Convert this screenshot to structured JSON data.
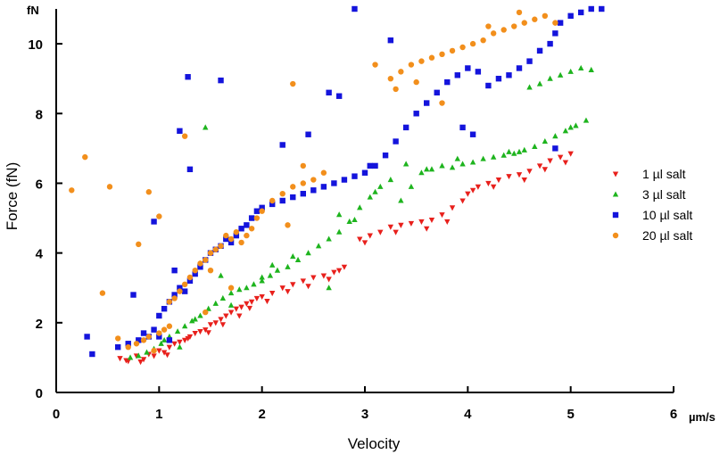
{
  "chart_data": {
    "type": "scatter",
    "title": "",
    "xlabel": "Velocity",
    "ylabel": "Force (fN)",
    "x_unit": "µm/s",
    "y_unit": "fN",
    "xlim": [
      0,
      6
    ],
    "ylim": [
      0,
      11
    ],
    "x_ticks": [
      "0",
      "1",
      "2",
      "3",
      "4",
      "5",
      "6"
    ],
    "y_ticks": [
      "0",
      "2",
      "4",
      "6",
      "8",
      "10"
    ],
    "grid": false,
    "legend_position": "right",
    "series": [
      {
        "name": "1 µl salt",
        "marker": "triangle-down",
        "color": "#e8201c",
        "points": [
          [
            0.62,
            0.98
          ],
          [
            0.7,
            0.9
          ],
          [
            0.78,
            1.05
          ],
          [
            0.85,
            0.95
          ],
          [
            0.9,
            1.1
          ],
          [
            0.95,
            1.05
          ],
          [
            1.0,
            1.2
          ],
          [
            1.05,
            1.15
          ],
          [
            1.1,
            1.3
          ],
          [
            1.15,
            1.4
          ],
          [
            1.2,
            1.45
          ],
          [
            1.25,
            1.5
          ],
          [
            1.3,
            1.6
          ],
          [
            1.35,
            1.7
          ],
          [
            1.4,
            1.75
          ],
          [
            1.45,
            1.8
          ],
          [
            1.5,
            1.95
          ],
          [
            1.55,
            2.0
          ],
          [
            1.6,
            2.1
          ],
          [
            1.65,
            2.2
          ],
          [
            1.7,
            2.3
          ],
          [
            1.75,
            2.4
          ],
          [
            1.8,
            2.45
          ],
          [
            1.85,
            2.55
          ],
          [
            1.9,
            2.6
          ],
          [
            1.95,
            2.7
          ],
          [
            2.0,
            2.75
          ],
          [
            2.1,
            2.85
          ],
          [
            2.2,
            3.0
          ],
          [
            2.3,
            3.1
          ],
          [
            2.4,
            3.2
          ],
          [
            2.5,
            3.3
          ],
          [
            2.6,
            3.35
          ],
          [
            2.7,
            3.45
          ],
          [
            2.75,
            3.5
          ],
          [
            2.8,
            3.6
          ],
          [
            2.95,
            4.4
          ],
          [
            3.05,
            4.5
          ],
          [
            3.15,
            4.6
          ],
          [
            3.25,
            4.75
          ],
          [
            3.35,
            4.8
          ],
          [
            3.45,
            4.85
          ],
          [
            3.55,
            4.9
          ],
          [
            3.65,
            4.95
          ],
          [
            3.75,
            5.1
          ],
          [
            3.85,
            5.3
          ],
          [
            3.95,
            5.5
          ],
          [
            4.0,
            5.7
          ],
          [
            4.1,
            5.9
          ],
          [
            4.2,
            6.0
          ],
          [
            4.3,
            6.1
          ],
          [
            4.4,
            6.2
          ],
          [
            4.5,
            6.25
          ],
          [
            4.6,
            6.35
          ],
          [
            4.7,
            6.5
          ],
          [
            4.8,
            6.65
          ],
          [
            4.9,
            6.75
          ],
          [
            5.0,
            6.85
          ],
          [
            0.68,
            0.92
          ],
          [
            0.82,
            0.88
          ],
          [
            1.08,
            1.08
          ],
          [
            1.28,
            1.55
          ],
          [
            1.48,
            1.72
          ],
          [
            1.62,
            1.95
          ],
          [
            1.78,
            2.2
          ],
          [
            1.88,
            2.42
          ],
          [
            2.05,
            2.62
          ],
          [
            2.25,
            2.9
          ],
          [
            2.45,
            3.05
          ],
          [
            2.65,
            3.25
          ],
          [
            3.0,
            4.3
          ],
          [
            3.3,
            4.6
          ],
          [
            3.6,
            4.7
          ],
          [
            3.8,
            4.9
          ],
          [
            4.05,
            5.8
          ],
          [
            4.25,
            5.9
          ],
          [
            4.55,
            6.1
          ],
          [
            4.75,
            6.4
          ],
          [
            4.95,
            6.6
          ]
        ]
      },
      {
        "name": "3 µl salt",
        "marker": "triangle-up",
        "color": "#1eb41e",
        "points": [
          [
            0.72,
            1.0
          ],
          [
            0.8,
            1.05
          ],
          [
            0.88,
            1.15
          ],
          [
            0.95,
            1.25
          ],
          [
            1.02,
            1.4
          ],
          [
            1.1,
            1.6
          ],
          [
            1.18,
            1.75
          ],
          [
            1.25,
            1.9
          ],
          [
            1.32,
            2.05
          ],
          [
            1.4,
            2.2
          ],
          [
            1.48,
            2.4
          ],
          [
            1.55,
            2.55
          ],
          [
            1.62,
            2.7
          ],
          [
            1.7,
            2.85
          ],
          [
            1.78,
            2.95
          ],
          [
            1.85,
            3.0
          ],
          [
            1.92,
            3.1
          ],
          [
            2.0,
            3.2
          ],
          [
            2.08,
            3.35
          ],
          [
            2.15,
            3.5
          ],
          [
            2.25,
            3.6
          ],
          [
            2.35,
            3.8
          ],
          [
            2.45,
            4.0
          ],
          [
            2.55,
            4.2
          ],
          [
            2.65,
            4.4
          ],
          [
            2.75,
            4.6
          ],
          [
            2.85,
            4.9
          ],
          [
            2.95,
            5.3
          ],
          [
            3.05,
            5.6
          ],
          [
            3.15,
            5.9
          ],
          [
            3.25,
            6.1
          ],
          [
            3.35,
            5.5
          ],
          [
            3.45,
            5.9
          ],
          [
            3.55,
            6.3
          ],
          [
            3.65,
            6.4
          ],
          [
            3.75,
            6.5
          ],
          [
            3.85,
            6.45
          ],
          [
            3.95,
            6.55
          ],
          [
            4.05,
            6.6
          ],
          [
            4.15,
            6.7
          ],
          [
            4.25,
            6.75
          ],
          [
            4.35,
            6.8
          ],
          [
            4.45,
            6.85
          ],
          [
            4.55,
            6.95
          ],
          [
            4.65,
            7.05
          ],
          [
            4.75,
            7.2
          ],
          [
            4.85,
            7.35
          ],
          [
            4.95,
            7.5
          ],
          [
            5.05,
            7.65
          ],
          [
            5.15,
            7.8
          ],
          [
            4.6,
            8.75
          ],
          [
            4.7,
            8.85
          ],
          [
            4.8,
            9.0
          ],
          [
            4.9,
            9.1
          ],
          [
            5.0,
            9.2
          ],
          [
            5.1,
            9.3
          ],
          [
            5.2,
            9.25
          ],
          [
            1.45,
            7.6
          ],
          [
            1.6,
            3.35
          ],
          [
            2.0,
            3.3
          ],
          [
            2.1,
            3.65
          ],
          [
            2.65,
            3.0
          ],
          [
            2.9,
            4.95
          ],
          [
            3.4,
            6.55
          ],
          [
            3.6,
            6.4
          ],
          [
            4.5,
            6.9
          ],
          [
            1.2,
            1.3
          ],
          [
            1.7,
            2.5
          ],
          [
            2.3,
            3.9
          ],
          [
            2.75,
            5.1
          ],
          [
            3.1,
            5.75
          ],
          [
            3.9,
            6.7
          ],
          [
            4.4,
            6.9
          ],
          [
            5.0,
            7.6
          ],
          [
            1.05,
            1.5
          ],
          [
            1.35,
            2.1
          ]
        ]
      },
      {
        "name": "10 µl salt",
        "marker": "square",
        "color": "#1414dc",
        "points": [
          [
            0.3,
            1.6
          ],
          [
            0.35,
            1.1
          ],
          [
            0.6,
            1.3
          ],
          [
            0.7,
            1.4
          ],
          [
            0.8,
            1.5
          ],
          [
            0.9,
            1.6
          ],
          [
            0.95,
            1.8
          ],
          [
            1.0,
            2.2
          ],
          [
            1.05,
            2.4
          ],
          [
            1.1,
            2.6
          ],
          [
            1.15,
            2.8
          ],
          [
            1.2,
            3.0
          ],
          [
            1.25,
            2.9
          ],
          [
            1.3,
            3.2
          ],
          [
            1.35,
            3.4
          ],
          [
            1.4,
            3.6
          ],
          [
            1.45,
            3.8
          ],
          [
            1.5,
            4.0
          ],
          [
            1.55,
            4.1
          ],
          [
            1.6,
            4.2
          ],
          [
            1.65,
            4.4
          ],
          [
            1.7,
            4.3
          ],
          [
            1.75,
            4.5
          ],
          [
            1.8,
            4.7
          ],
          [
            1.85,
            4.8
          ],
          [
            1.9,
            5.0
          ],
          [
            1.95,
            5.2
          ],
          [
            2.0,
            5.3
          ],
          [
            2.1,
            5.4
          ],
          [
            2.2,
            5.5
          ],
          [
            2.3,
            5.6
          ],
          [
            2.4,
            5.7
          ],
          [
            2.5,
            5.8
          ],
          [
            2.6,
            5.9
          ],
          [
            2.7,
            6.0
          ],
          [
            2.8,
            6.1
          ],
          [
            2.9,
            6.2
          ],
          [
            3.0,
            6.3
          ],
          [
            3.1,
            6.5
          ],
          [
            3.2,
            6.8
          ],
          [
            3.3,
            7.2
          ],
          [
            3.4,
            7.6
          ],
          [
            3.5,
            8.0
          ],
          [
            3.6,
            8.3
          ],
          [
            3.7,
            8.6
          ],
          [
            3.8,
            8.9
          ],
          [
            3.9,
            9.1
          ],
          [
            4.0,
            9.3
          ],
          [
            4.1,
            9.2
          ],
          [
            4.2,
            8.8
          ],
          [
            4.3,
            9.0
          ],
          [
            4.4,
            9.1
          ],
          [
            4.5,
            9.3
          ],
          [
            4.6,
            9.5
          ],
          [
            4.7,
            9.8
          ],
          [
            4.8,
            10.0
          ],
          [
            4.85,
            10.3
          ],
          [
            4.9,
            10.6
          ],
          [
            5.0,
            10.8
          ],
          [
            5.1,
            10.9
          ],
          [
            5.2,
            11.0
          ],
          [
            5.3,
            11.0
          ],
          [
            1.28,
            9.05
          ],
          [
            1.6,
            8.95
          ],
          [
            2.9,
            11.0
          ],
          [
            1.2,
            7.5
          ],
          [
            1.3,
            6.4
          ],
          [
            2.65,
            8.6
          ],
          [
            2.75,
            8.5
          ],
          [
            1.1,
            1.5
          ],
          [
            1.0,
            1.6
          ],
          [
            0.85,
            1.7
          ],
          [
            1.15,
            3.5
          ],
          [
            0.95,
            4.9
          ],
          [
            0.75,
            2.8
          ],
          [
            3.25,
            10.1
          ],
          [
            3.95,
            7.6
          ],
          [
            4.05,
            7.4
          ],
          [
            4.85,
            7.0
          ],
          [
            3.05,
            6.5
          ],
          [
            2.45,
            7.4
          ],
          [
            2.2,
            7.1
          ]
        ]
      },
      {
        "name": "20 µl salt",
        "marker": "circle",
        "color": "#f28f1c",
        "points": [
          [
            0.15,
            5.8
          ],
          [
            0.28,
            6.75
          ],
          [
            0.52,
            5.9
          ],
          [
            0.45,
            2.85
          ],
          [
            0.6,
            1.55
          ],
          [
            0.7,
            1.3
          ],
          [
            0.78,
            1.4
          ],
          [
            0.85,
            1.5
          ],
          [
            0.9,
            1.6
          ],
          [
            1.0,
            1.7
          ],
          [
            1.05,
            1.8
          ],
          [
            1.1,
            2.6
          ],
          [
            1.15,
            2.7
          ],
          [
            1.2,
            2.9
          ],
          [
            1.25,
            3.1
          ],
          [
            1.3,
            3.3
          ],
          [
            1.35,
            3.5
          ],
          [
            1.4,
            3.7
          ],
          [
            1.45,
            3.8
          ],
          [
            1.5,
            4.0
          ],
          [
            1.55,
            4.1
          ],
          [
            1.6,
            4.2
          ],
          [
            1.65,
            4.5
          ],
          [
            1.7,
            4.4
          ],
          [
            1.75,
            4.6
          ],
          [
            1.8,
            4.3
          ],
          [
            1.85,
            4.5
          ],
          [
            1.9,
            4.7
          ],
          [
            1.95,
            5.0
          ],
          [
            2.0,
            5.2
          ],
          [
            2.1,
            5.5
          ],
          [
            2.2,
            5.7
          ],
          [
            2.3,
            5.9
          ],
          [
            2.4,
            6.0
          ],
          [
            2.5,
            6.1
          ],
          [
            2.6,
            6.3
          ],
          [
            3.25,
            9.0
          ],
          [
            3.35,
            9.2
          ],
          [
            3.45,
            9.4
          ],
          [
            3.55,
            9.5
          ],
          [
            3.65,
            9.6
          ],
          [
            3.75,
            9.7
          ],
          [
            3.85,
            9.8
          ],
          [
            3.95,
            9.9
          ],
          [
            4.05,
            10.0
          ],
          [
            4.15,
            10.1
          ],
          [
            4.25,
            10.3
          ],
          [
            4.35,
            10.4
          ],
          [
            4.45,
            10.5
          ],
          [
            4.55,
            10.6
          ],
          [
            4.65,
            10.7
          ],
          [
            4.75,
            10.8
          ],
          [
            4.85,
            10.6
          ],
          [
            1.25,
            7.35
          ],
          [
            2.3,
            8.85
          ],
          [
            0.9,
            5.75
          ],
          [
            1.0,
            5.05
          ],
          [
            0.8,
            4.25
          ],
          [
            2.4,
            6.5
          ],
          [
            3.3,
            8.7
          ],
          [
            3.5,
            8.9
          ],
          [
            3.75,
            8.3
          ],
          [
            1.1,
            1.9
          ],
          [
            0.95,
            1.2
          ],
          [
            1.45,
            2.3
          ],
          [
            1.7,
            3.0
          ],
          [
            2.25,
            4.8
          ],
          [
            3.1,
            9.4
          ],
          [
            4.2,
            10.5
          ],
          [
            4.5,
            10.9
          ],
          [
            1.5,
            3.5
          ]
        ]
      }
    ]
  }
}
